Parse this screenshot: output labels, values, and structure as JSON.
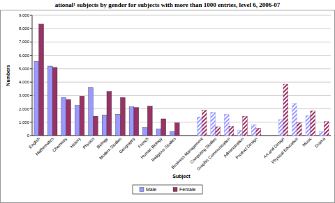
{
  "chart_data": {
    "type": "bar",
    "title": "ational¹ subjects by gender for subjects with more than 1000 entries, level 6, 2006-07",
    "x_label": "Subject",
    "y_label": "Numbers",
    "categories": [
      "English",
      "Mathematics",
      "Chemistry",
      "History",
      "Physics",
      "Biology",
      "Modern Studies",
      "Geography",
      "French",
      "Human Biology",
      "Religious Studies",
      null,
      "Business Management",
      "Computing Studies",
      "Graphic Communication",
      "Administration",
      "Product Design",
      null,
      "Art and Design",
      "Physical Education",
      "Music",
      "Drama"
    ],
    "series": [
      {
        "name": "Male",
        "color": "#9999ff",
        "values": [
          5550,
          5200,
          2850,
          2250,
          3600,
          1550,
          1600,
          2150,
          600,
          500,
          300,
          null,
          1400,
          1750,
          1600,
          400,
          800,
          null,
          1200,
          2400,
          1500,
          300
        ]
      },
      {
        "name": "Female",
        "color": "#993366",
        "values": [
          8350,
          5100,
          2700,
          2950,
          1450,
          3300,
          2850,
          2100,
          2200,
          1250,
          950,
          null,
          1900,
          650,
          700,
          1450,
          550,
          null,
          3850,
          950,
          1850,
          1050
        ]
      }
    ],
    "ylim": [
      0,
      9000
    ],
    "yticks": [
      0,
      {
        "value": 1000,
        "label": "1,000"
      },
      {
        "value": 2000,
        "label": "2,000"
      },
      {
        "value": 3000,
        "label": "3,000"
      },
      {
        "value": 4000,
        "label": "4,000"
      },
      {
        "value": 5000,
        "label": "5,000"
      },
      {
        "value": 6000,
        "label": "6,000"
      },
      {
        "value": 7000,
        "label": "7,000"
      },
      {
        "value": 8000,
        "label": "8,000"
      },
      {
        "value": 9000,
        "label": "9,000"
      }
    ],
    "grid": true,
    "legend": "bottom"
  }
}
